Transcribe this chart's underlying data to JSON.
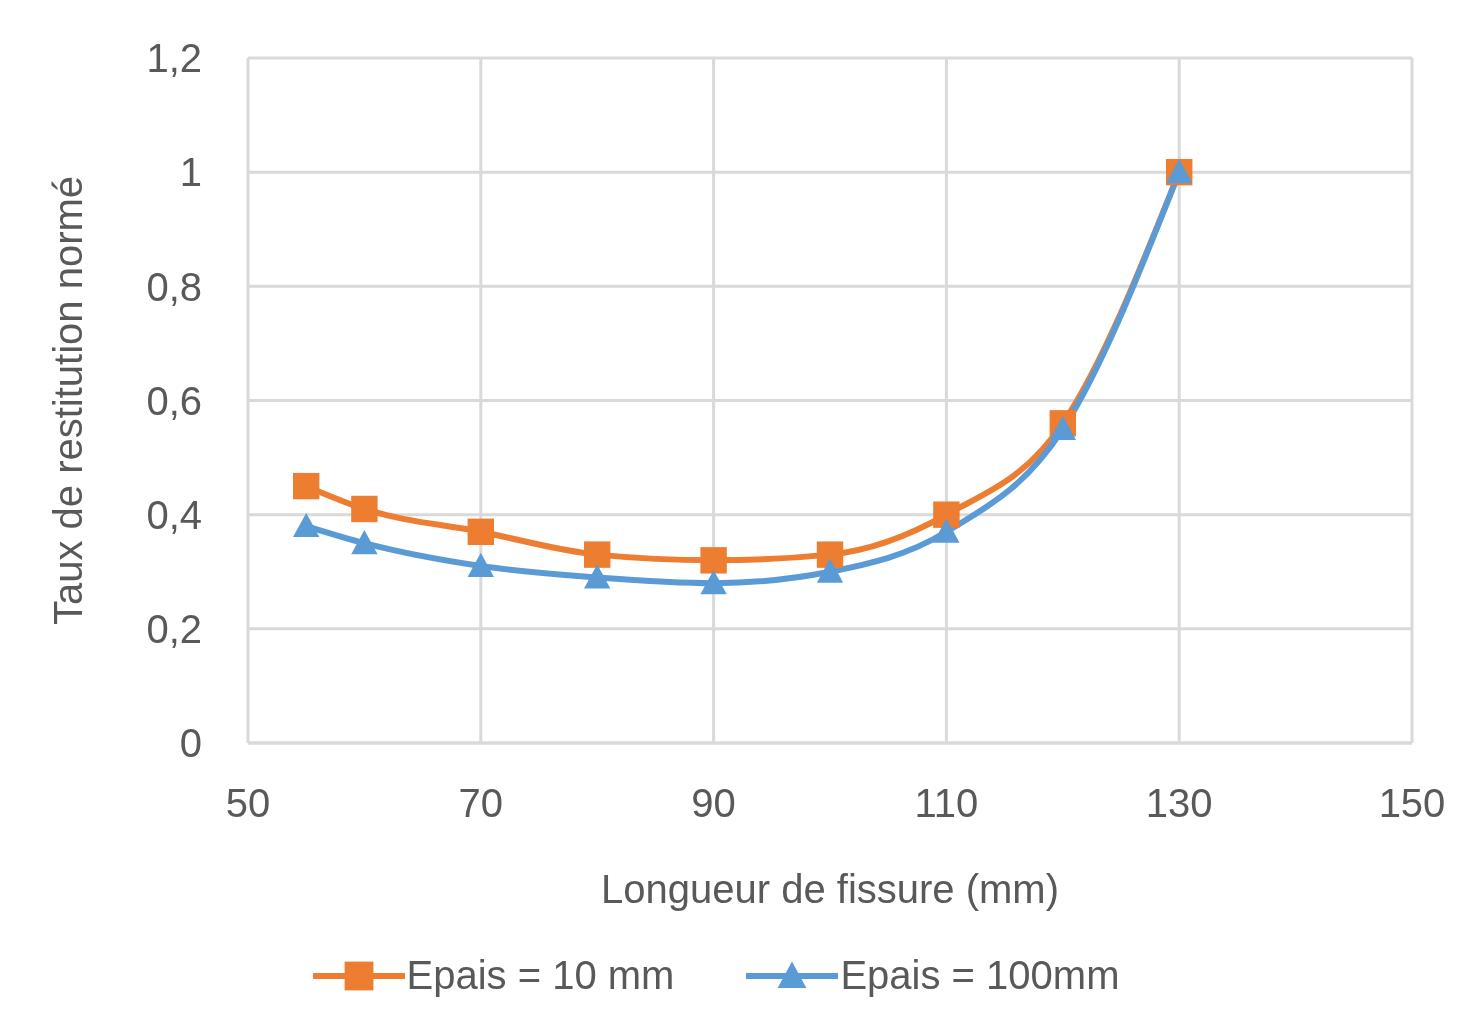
{
  "chart_data": {
    "type": "line",
    "xlabel": "Longueur de fissure (mm)",
    "ylabel": "Taux de restitution normé",
    "x": [
      55,
      60,
      70,
      80,
      90,
      100,
      110,
      120,
      130
    ],
    "series": [
      {
        "name": "Epais = 10 mm",
        "color": "#ed7d31",
        "marker": "square",
        "values": [
          0.45,
          0.41,
          0.37,
          0.33,
          0.32,
          0.33,
          0.4,
          0.56,
          1.0
        ]
      },
      {
        "name": "Epais = 100mm",
        "color": "#5b9bd5",
        "marker": "triangle",
        "values": [
          0.38,
          0.35,
          0.31,
          0.29,
          0.28,
          0.3,
          0.37,
          0.55,
          1.0
        ]
      }
    ],
    "xlim": [
      50,
      150
    ],
    "xticks": [
      50,
      70,
      90,
      110,
      130,
      150
    ],
    "ylim": [
      0,
      1.2
    ],
    "yticks": [
      0,
      {
        "value": 0.2,
        "label": "0,2"
      },
      {
        "value": 0.4,
        "label": "0,4"
      },
      {
        "value": 0.6,
        "label": "0,6"
      },
      {
        "value": 0.8,
        "label": "0,8"
      },
      1,
      {
        "value": 1.2,
        "label": "1,2"
      }
    ],
    "grid": true,
    "legend": "bottom",
    "line_style": "solid"
  }
}
